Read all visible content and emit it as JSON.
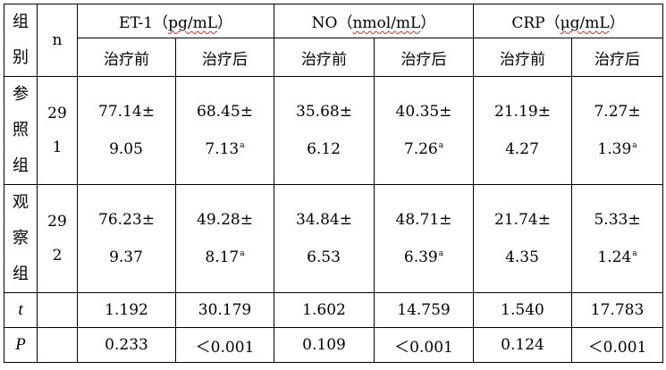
{
  "table": {
    "group_header": [
      "组",
      "别"
    ],
    "n_header": "n",
    "measures": [
      {
        "pre": "ET-1（",
        "unit": "pg/mL",
        "post": "）"
      },
      {
        "pre": "NO（",
        "unit": "nmol/mL",
        "post": "）"
      },
      {
        "pre": "CRP（",
        "unit": "μg/mL",
        "post": "）"
      }
    ],
    "sub_headers": [
      "治疗前",
      "治疗后",
      "治疗前",
      "治疗后",
      "治疗前",
      "治疗后"
    ],
    "rows": [
      {
        "group": [
          "参",
          "照",
          "组"
        ],
        "n": [
          "29",
          "1"
        ],
        "cells": [
          {
            "line1": "77.14±",
            "line2": "9.05",
            "mark": ""
          },
          {
            "line1": "68.45±",
            "line2": "7.13",
            "mark": "a"
          },
          {
            "line1": "35.68±",
            "line2": "6.12",
            "mark": ""
          },
          {
            "line1": "40.35±",
            "line2": "7.26",
            "mark": "a"
          },
          {
            "line1": "21.19±",
            "line2": "4.27",
            "mark": ""
          },
          {
            "line1": "7.27±",
            "line2": "1.39",
            "mark": "a"
          }
        ]
      },
      {
        "group": [
          "观",
          "察",
          "组"
        ],
        "n": [
          "29",
          "2"
        ],
        "cells": [
          {
            "line1": "76.23±",
            "line2": "9.37",
            "mark": ""
          },
          {
            "line1": "49.28±",
            "line2": "8.17",
            "mark": "a"
          },
          {
            "line1": "34.84±",
            "line2": "6.53",
            "mark": ""
          },
          {
            "line1": "48.71±",
            "line2": "6.39",
            "mark": "a"
          },
          {
            "line1": "21.74±",
            "line2": "4.35",
            "mark": ""
          },
          {
            "line1": "5.33±",
            "line2": "1.24",
            "mark": "a"
          }
        ]
      }
    ],
    "stats": [
      {
        "label": "t",
        "values": [
          "1.192",
          "30.179",
          "1.602",
          "14.759",
          "1.540",
          "17.783"
        ]
      },
      {
        "label": "P",
        "values": [
          "0.233",
          "＜0.001",
          "0.109",
          "＜0.001",
          "0.124",
          "＜0.001"
        ]
      }
    ]
  }
}
